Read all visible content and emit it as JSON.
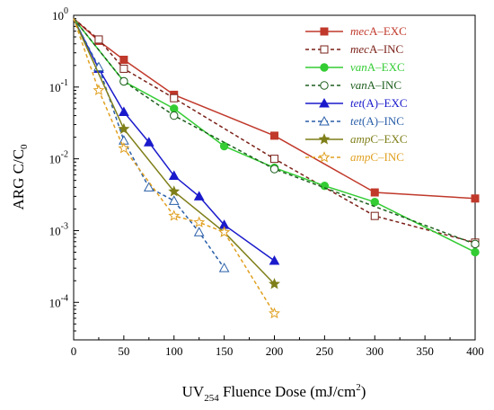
{
  "chart_data": {
    "type": "line",
    "xlabel": "UV254 Fluence Dose (mJ/cm2)",
    "ylabel": "ARG C/C0",
    "xlim": [
      0,
      400
    ],
    "ylim": [
      3e-05,
      1
    ],
    "yscale": "log",
    "grid": false,
    "legend_position": "top-right",
    "x_ticks": [
      0,
      50,
      100,
      150,
      200,
      250,
      300,
      350,
      400
    ],
    "y_ticks": [
      {
        "value": 1,
        "base": "10",
        "exp": "0"
      },
      {
        "value": 0.1,
        "base": "10",
        "exp": "-1"
      },
      {
        "value": 0.01,
        "base": "10",
        "exp": "-2"
      },
      {
        "value": 0.001,
        "base": "10",
        "exp": "-3"
      },
      {
        "value": 0.0001,
        "base": "10",
        "exp": "-4"
      }
    ],
    "series": [
      {
        "name_italic": "mec",
        "name_rest": "A–EXC",
        "color": "#c0392b",
        "marker": "square",
        "filled": true,
        "dashed": false,
        "points": [
          [
            0,
            0.9
          ],
          [
            25,
            0.44
          ],
          [
            50,
            0.24
          ],
          [
            100,
            0.078
          ],
          [
            200,
            0.021
          ],
          [
            300,
            0.0034
          ],
          [
            400,
            0.0028
          ]
        ]
      },
      {
        "name_italic": "mec",
        "name_rest": "A–INC",
        "color": "#7a2018",
        "marker": "square",
        "filled": false,
        "dashed": true,
        "points": [
          [
            0,
            0.9
          ],
          [
            25,
            0.46
          ],
          [
            50,
            0.18
          ],
          [
            100,
            0.07
          ],
          [
            200,
            0.01
          ],
          [
            300,
            0.0016
          ],
          [
            400,
            0.00068
          ]
        ]
      },
      {
        "name_italic": "van",
        "name_rest": "A–EXC",
        "color": "#33cc33",
        "marker": "circle",
        "filled": true,
        "dashed": false,
        "points": [
          [
            0,
            0.9
          ],
          [
            50,
            0.12
          ],
          [
            100,
            0.05
          ],
          [
            150,
            0.015
          ],
          [
            200,
            0.0075
          ],
          [
            250,
            0.0042
          ],
          [
            300,
            0.0025
          ],
          [
            400,
            0.0005
          ]
        ]
      },
      {
        "name_italic": "van",
        "name_rest": "A–INC",
        "color": "#1f5f1f",
        "marker": "circle",
        "filled": false,
        "dashed": true,
        "points": [
          [
            0,
            0.9
          ],
          [
            50,
            0.12
          ],
          [
            100,
            0.04
          ],
          [
            200,
            0.0072
          ],
          [
            400,
            0.00065
          ]
        ]
      },
      {
        "name_italic": "tet",
        "name_rest": "(A)–EXC",
        "color": "#1a1acc",
        "marker": "triangle",
        "filled": true,
        "dashed": false,
        "points": [
          [
            0,
            0.9
          ],
          [
            25,
            0.18
          ],
          [
            50,
            0.045
          ],
          [
            75,
            0.017
          ],
          [
            100,
            0.0058
          ],
          [
            125,
            0.003
          ],
          [
            150,
            0.0012
          ],
          [
            200,
            0.00038
          ]
        ]
      },
      {
        "name_italic": "tet",
        "name_rest": "(A)–INC",
        "color": "#2a5fa8",
        "marker": "triangle",
        "filled": false,
        "dashed": true,
        "points": [
          [
            0,
            0.9
          ],
          [
            25,
            0.19
          ],
          [
            50,
            0.018
          ],
          [
            75,
            0.004
          ],
          [
            100,
            0.0026
          ],
          [
            125,
            0.00095
          ],
          [
            150,
            0.0003
          ]
        ]
      },
      {
        "name_italic": "amp",
        "name_rest": "C–EXC",
        "color": "#7f7f1a",
        "marker": "star",
        "filled": true,
        "dashed": false,
        "points": [
          [
            0,
            0.9
          ],
          [
            50,
            0.026
          ],
          [
            100,
            0.0035
          ],
          [
            150,
            0.00095
          ],
          [
            200,
            0.00018
          ]
        ]
      },
      {
        "name_italic": "amp",
        "name_rest": "C–INC",
        "color": "#e0a020",
        "marker": "star",
        "filled": false,
        "dashed": true,
        "points": [
          [
            0,
            0.9
          ],
          [
            25,
            0.09
          ],
          [
            50,
            0.014
          ],
          [
            100,
            0.0016
          ],
          [
            125,
            0.0013
          ],
          [
            150,
            0.00095
          ],
          [
            200,
            7e-05
          ]
        ]
      }
    ]
  },
  "labels": {
    "x_axis": {
      "prefix": "UV",
      "sub": "254",
      "middle": " Fluence Dose (mJ/cm",
      "sup": "2",
      "suffix": ")"
    },
    "y_axis": {
      "prefix": "ARG C/C",
      "sub": "0"
    }
  }
}
